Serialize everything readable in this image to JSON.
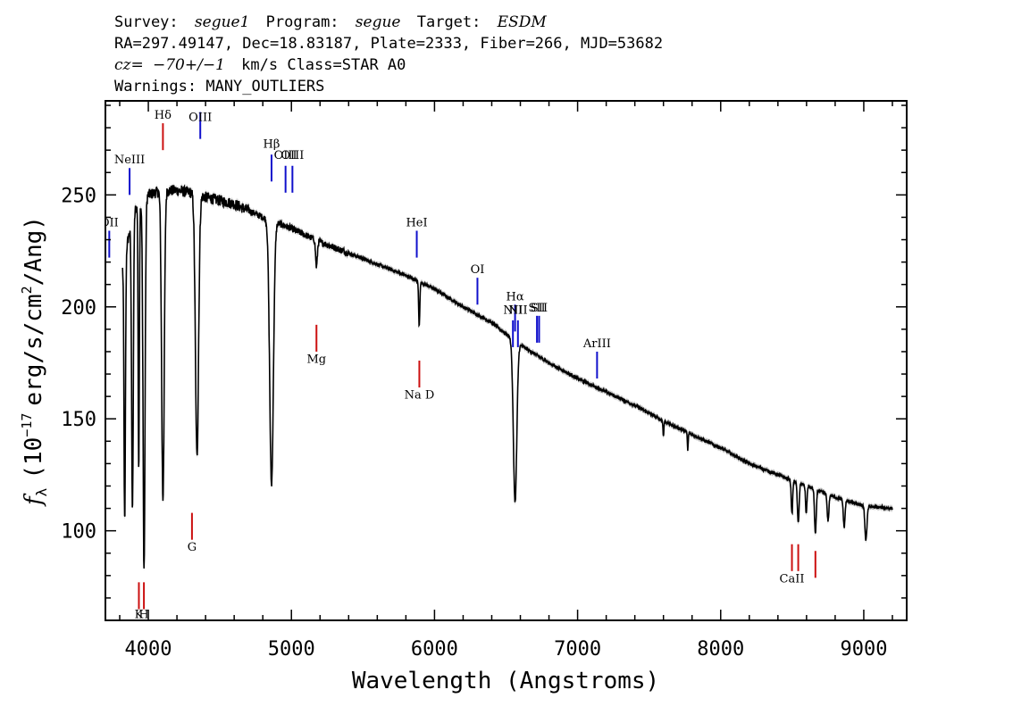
{
  "header": {
    "survey_label": "Survey:",
    "survey": "segue1",
    "program_label": "Program:",
    "program": "segue",
    "target_label": "Target:",
    "target": "ESDM",
    "line2": "RA=297.49147, Dec=18.83187, Plate=2333, Fiber=266, MJD=53682",
    "cz_label": "cz=",
    "cz": "−70+/−1",
    "cz_units": "km/s Class=STAR A0",
    "warnings": "Warnings: MANY_OUTLIERS"
  },
  "chart_data": {
    "type": "line",
    "xlabel": "Wavelength (Angstroms)",
    "ylabel_symbol": "f",
    "ylabel_sub": "λ",
    "ylabel_pre": "(10",
    "ylabel_exp1": "−17",
    "ylabel_mid": "erg/s/cm",
    "ylabel_exp2": "2",
    "ylabel_post": "/Ang)",
    "xlim": [
      3700,
      9300
    ],
    "ylim": [
      60,
      292
    ],
    "xticks": [
      4000,
      5000,
      6000,
      7000,
      8000,
      9000
    ],
    "yticks": [
      100,
      150,
      200,
      250
    ],
    "continuum": [
      [
        3820,
        218
      ],
      [
        3900,
        243
      ],
      [
        4000,
        250
      ],
      [
        4100,
        252
      ],
      [
        4200,
        252
      ],
      [
        4300,
        251
      ],
      [
        4400,
        249
      ],
      [
        4600,
        246
      ],
      [
        4800,
        240
      ],
      [
        5000,
        235
      ],
      [
        5200,
        229
      ],
      [
        5400,
        224
      ],
      [
        5600,
        219
      ],
      [
        5800,
        214
      ],
      [
        6000,
        208
      ],
      [
        6200,
        200
      ],
      [
        6400,
        193
      ],
      [
        6600,
        183
      ],
      [
        6800,
        175
      ],
      [
        7000,
        168
      ],
      [
        7200,
        162
      ],
      [
        7400,
        156
      ],
      [
        7600,
        149
      ],
      [
        7800,
        143
      ],
      [
        8000,
        137
      ],
      [
        8200,
        130
      ],
      [
        8400,
        125
      ],
      [
        8600,
        120
      ],
      [
        8800,
        115
      ],
      [
        9000,
        111
      ],
      [
        9200,
        110
      ]
    ],
    "absorption_lines": [
      {
        "center": 3835,
        "depth": 120,
        "width": 5
      },
      {
        "center": 3889,
        "depth": 130,
        "width": 6
      },
      {
        "center": 3933,
        "depth": 120,
        "width": 4
      },
      {
        "center": 3970,
        "depth": 165,
        "width": 7
      },
      {
        "center": 4102,
        "depth": 138,
        "width": 9
      },
      {
        "center": 4340,
        "depth": 117,
        "width": 11
      },
      {
        "center": 4861,
        "depth": 118,
        "width": 13
      },
      {
        "center": 5175,
        "depth": 12,
        "width": 6
      },
      {
        "center": 5893,
        "depth": 20,
        "width": 4
      },
      {
        "center": 6563,
        "depth": 72,
        "width": 12
      },
      {
        "center": 7600,
        "depth": 7,
        "width": 3
      },
      {
        "center": 7770,
        "depth": 8,
        "width": 3
      },
      {
        "center": 8498,
        "depth": 15,
        "width": 5
      },
      {
        "center": 8542,
        "depth": 18,
        "width": 6
      },
      {
        "center": 8598,
        "depth": 12,
        "width": 5
      },
      {
        "center": 8662,
        "depth": 20,
        "width": 6
      },
      {
        "center": 8750,
        "depth": 12,
        "width": 6
      },
      {
        "center": 8863,
        "depth": 12,
        "width": 6
      },
      {
        "center": 9015,
        "depth": 15,
        "width": 7
      }
    ],
    "emission_line_markers": [
      {
        "label": "OII",
        "wavelength": 3727,
        "y_bottom": 222,
        "y_top": 234,
        "label_y": 236,
        "color": "#1010cc"
      },
      {
        "label": "NeIII",
        "wavelength": 3869,
        "y_bottom": 250,
        "y_top": 262,
        "label_y": 264,
        "color": "#1010cc"
      },
      {
        "label": "Hδ",
        "wavelength": 4102,
        "y_bottom": 270,
        "y_top": 282,
        "label_y": 284,
        "color": "#cc1010"
      },
      {
        "label": "OIII",
        "wavelength": 4363,
        "y_bottom": 275,
        "y_top": 287,
        "label_y": 283,
        "color": "#1010cc"
      },
      {
        "label": "Hβ",
        "wavelength": 4861,
        "y_bottom": 256,
        "y_top": 268,
        "label_y": 271,
        "color": "#1010cc"
      },
      {
        "label": "OIII",
        "wavelength": 4959,
        "y_bottom": 251,
        "y_top": 263,
        "label_y": 266,
        "color": "#1010cc"
      },
      {
        "label": "OIII",
        "wavelength": 5007,
        "y_bottom": 251,
        "y_top": 263,
        "label_y": 266,
        "color": "#1010cc"
      },
      {
        "label": "HeI",
        "wavelength": 5876,
        "y_bottom": 222,
        "y_top": 234,
        "label_y": 236,
        "color": "#1010cc"
      },
      {
        "label": "OI",
        "wavelength": 6300,
        "y_bottom": 201,
        "y_top": 213,
        "label_y": 215,
        "color": "#1010cc"
      },
      {
        "label": "NII",
        "wavelength": 6548,
        "y_bottom": 182,
        "y_top": 194,
        "label_y": 197,
        "color": "#1010cc"
      },
      {
        "label": "Hα",
        "wavelength": 6563,
        "y_bottom": 189,
        "y_top": 201,
        "label_y": 203,
        "color": "#1010cc"
      },
      {
        "label": "NII",
        "wavelength": 6583,
        "y_bottom": 182,
        "y_top": 194,
        "label_y": 197,
        "color": "#1010cc"
      },
      {
        "label": "SII",
        "wavelength": 6716,
        "y_bottom": 184,
        "y_top": 196,
        "label_y": 198,
        "color": "#1010cc"
      },
      {
        "label": "SII",
        "wavelength": 6731,
        "y_bottom": 184,
        "y_top": 196,
        "label_y": 198,
        "color": "#1010cc"
      },
      {
        "label": "ArIII",
        "wavelength": 7136,
        "y_bottom": 168,
        "y_top": 180,
        "label_y": 182,
        "color": "#1010cc"
      }
    ],
    "absorption_line_markers": [
      {
        "label": "K",
        "wavelength": 3934,
        "y_bottom": 65,
        "y_top": 77,
        "label_y": 61,
        "color": "#cc1010"
      },
      {
        "label": "H",
        "wavelength": 3969,
        "y_bottom": 65,
        "y_top": 77,
        "label_y": 61,
        "color": "#cc1010"
      },
      {
        "label": "G",
        "wavelength": 4305,
        "y_bottom": 96,
        "y_top": 108,
        "label_y": 91,
        "color": "#cc1010"
      },
      {
        "label": "Mg",
        "wavelength": 5175,
        "y_bottom": 180,
        "y_top": 192,
        "label_y": 175,
        "color": "#cc1010"
      },
      {
        "label": "Na D",
        "wavelength": 5894,
        "y_bottom": 164,
        "y_top": 176,
        "label_y": 159,
        "color": "#cc1010"
      },
      {
        "label": "CaII",
        "wavelength": 8498,
        "y_bottom": 82,
        "y_top": 94,
        "label_y": 77,
        "color": "#cc1010"
      },
      {
        "label": "",
        "wavelength": 8542,
        "y_bottom": 82,
        "y_top": 94,
        "color": "#cc1010"
      },
      {
        "label": "",
        "wavelength": 8662,
        "y_bottom": 79,
        "y_top": 91,
        "color": "#cc1010"
      }
    ],
    "colors": {
      "spectrum": "#000000",
      "error_band": "#b0b0b0",
      "axes": "#000000"
    }
  }
}
